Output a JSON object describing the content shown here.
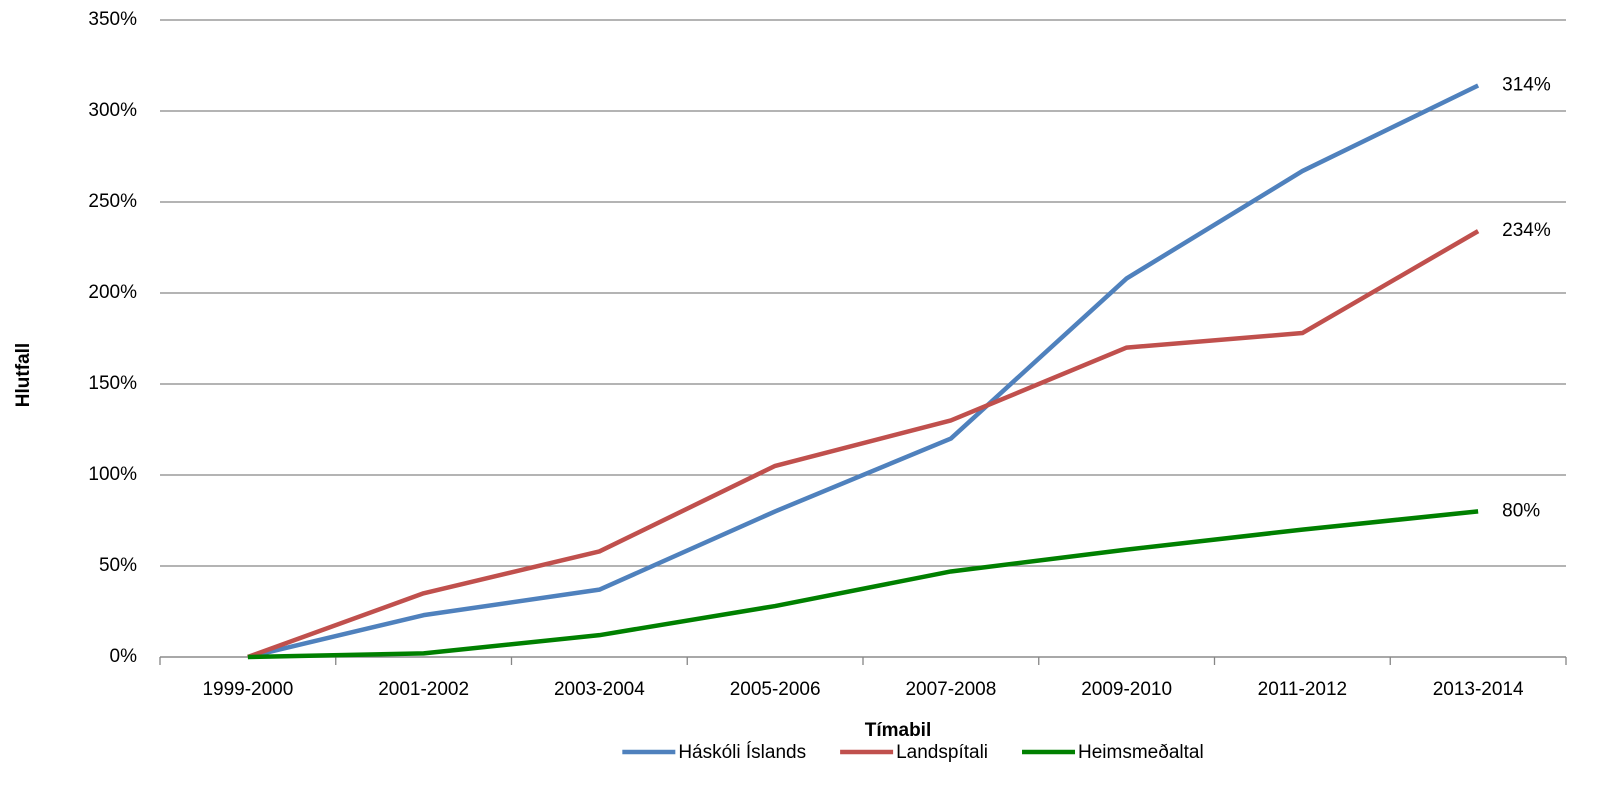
{
  "chart_data": {
    "type": "line",
    "x_label": "Tímabil",
    "y_label": "Hlutfall",
    "categories": [
      "1999-2000",
      "2001-2002",
      "2003-2004",
      "2005-2006",
      "2007-2008",
      "2009-2010",
      "2011-2012",
      "2013-2014"
    ],
    "series": [
      {
        "name": "Háskóli Íslands",
        "color": "#4f81bd",
        "values": [
          0,
          23,
          37,
          80,
          120,
          208,
          267,
          314
        ],
        "value_labels": [
          null,
          null,
          null,
          null,
          null,
          null,
          null,
          "314%"
        ]
      },
      {
        "name": "Landspítali",
        "color": "#c0504d",
        "values": [
          0,
          35,
          58,
          105,
          130,
          170,
          178,
          234
        ],
        "value_labels": [
          null,
          null,
          null,
          null,
          null,
          null,
          null,
          "234%"
        ]
      },
      {
        "name": "Heimsmeðaltal",
        "color": "#008000",
        "values": [
          0,
          2,
          12,
          28,
          47,
          59,
          70,
          80
        ],
        "value_labels": [
          null,
          null,
          null,
          null,
          null,
          null,
          null,
          "80%"
        ]
      }
    ],
    "ylim": [
      0,
      350
    ],
    "yticks": [
      {
        "value": 0,
        "label": "0%"
      },
      {
        "value": 50,
        "label": "50%"
      },
      {
        "value": 100,
        "label": "100%"
      },
      {
        "value": 150,
        "label": "150%"
      },
      {
        "value": 200,
        "label": "200%"
      },
      {
        "value": 250,
        "label": "250%"
      },
      {
        "value": 300,
        "label": "300%"
      },
      {
        "value": 350,
        "label": "350%"
      }
    ],
    "grid": true,
    "legend": "bottom"
  }
}
